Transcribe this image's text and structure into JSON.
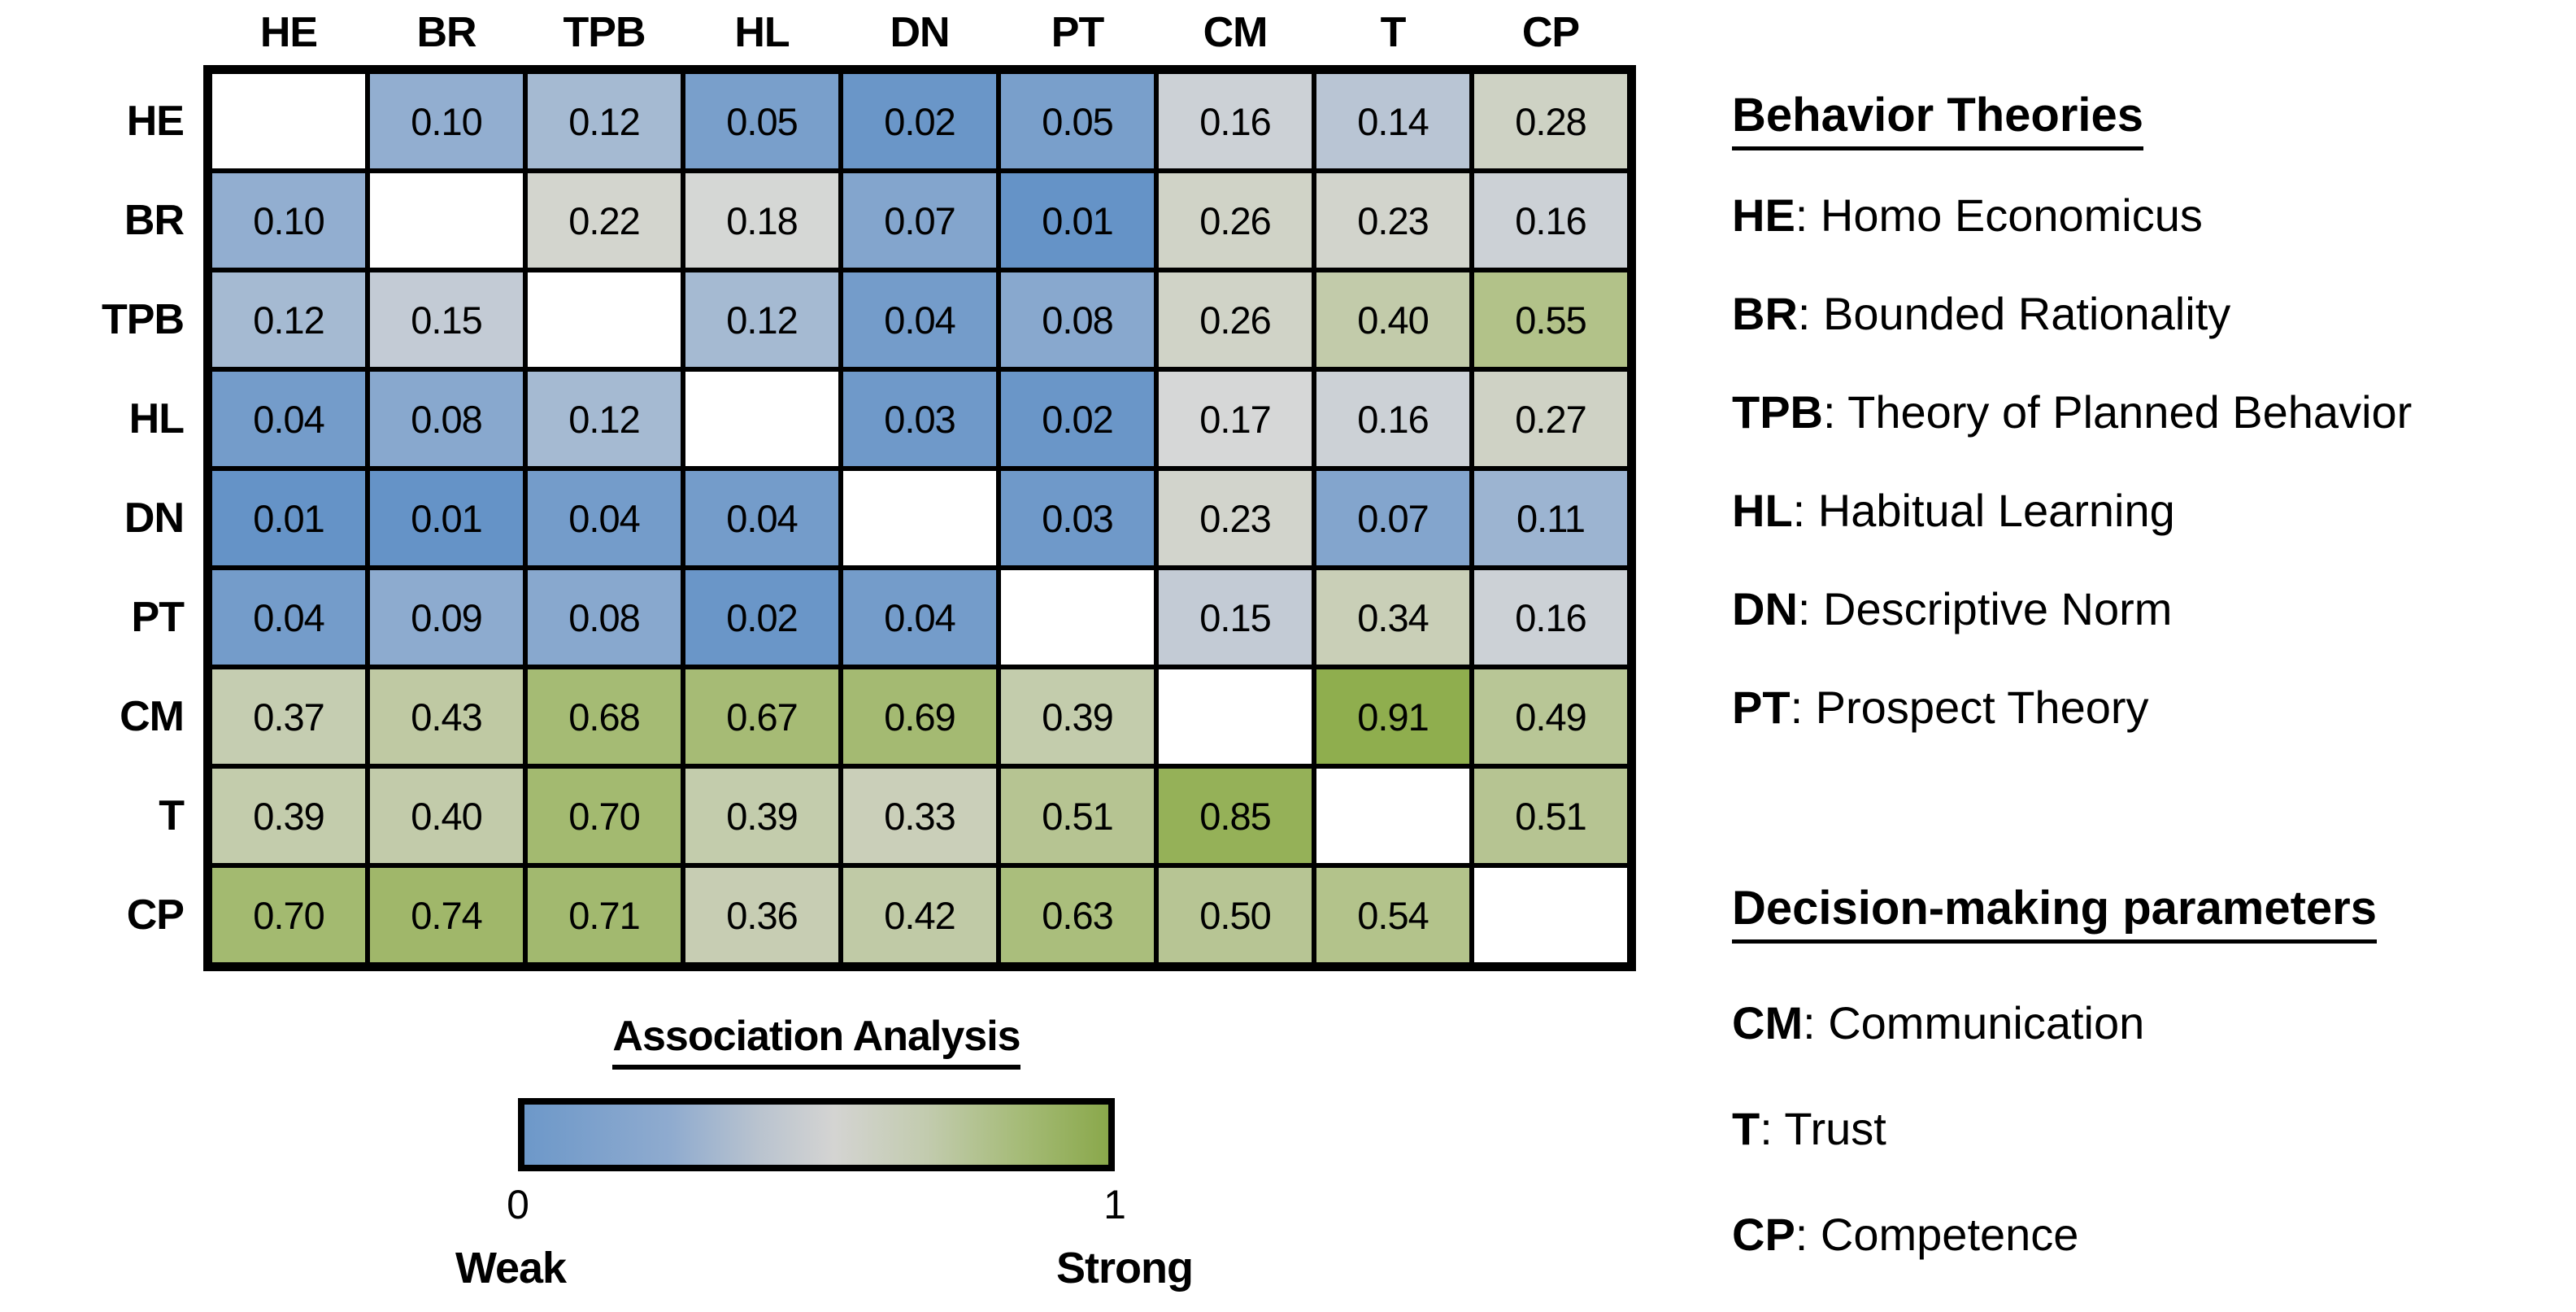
{
  "chart_data": {
    "type": "heatmap",
    "title": "Association Analysis",
    "row_labels": [
      "HE",
      "BR",
      "TPB",
      "HL",
      "DN",
      "PT",
      "CM",
      "T",
      "CP"
    ],
    "col_labels": [
      "HE",
      "BR",
      "TPB",
      "HL",
      "DN",
      "PT",
      "CM",
      "T",
      "CP"
    ],
    "matrix": [
      [
        null,
        0.1,
        0.12,
        0.05,
        0.02,
        0.05,
        0.16,
        0.14,
        0.28
      ],
      [
        0.1,
        null,
        0.22,
        0.18,
        0.07,
        0.01,
        0.26,
        0.23,
        0.16
      ],
      [
        0.12,
        0.15,
        null,
        0.12,
        0.04,
        0.08,
        0.26,
        0.4,
        0.55
      ],
      [
        0.04,
        0.08,
        0.12,
        null,
        0.03,
        0.02,
        0.17,
        0.16,
        0.27
      ],
      [
        0.01,
        0.01,
        0.04,
        0.04,
        null,
        0.03,
        0.23,
        0.07,
        0.11
      ],
      [
        0.04,
        0.09,
        0.08,
        0.02,
        0.04,
        null,
        0.15,
        0.34,
        0.16
      ],
      [
        0.37,
        0.43,
        0.68,
        0.67,
        0.69,
        0.39,
        null,
        0.91,
        0.49
      ],
      [
        0.39,
        0.4,
        0.7,
        0.39,
        0.33,
        0.51,
        0.85,
        null,
        0.51
      ],
      [
        0.7,
        0.74,
        0.71,
        0.36,
        0.42,
        0.63,
        0.5,
        0.54,
        null
      ]
    ],
    "value_range": [
      0,
      1
    ],
    "diagonal": "blank",
    "grid": true,
    "colormap_stops": [
      [
        0.0,
        "#6090c6"
      ],
      [
        0.1,
        "#92aed0"
      ],
      [
        0.17,
        "#d6d7d7"
      ],
      [
        0.3,
        "#cdd1c0"
      ],
      [
        0.55,
        "#b2c289"
      ],
      [
        0.91,
        "#8fae4e"
      ],
      [
        1.0,
        "#89a944"
      ]
    ],
    "legend": {
      "title": "Association Analysis",
      "min_tick": "0",
      "max_tick": "1",
      "min_label": "Weak",
      "max_label": "Strong",
      "gradient_left_color": "#6d98c9",
      "gradient_right_color": "#8aa84b"
    }
  },
  "sidebar": {
    "behavior_theories": {
      "title": "Behavior Theories",
      "items": [
        {
          "abbr": "HE",
          "name": "Homo Economicus"
        },
        {
          "abbr": "BR",
          "name": "Bounded Rationality"
        },
        {
          "abbr": "TPB",
          "name": "Theory of Planned Behavior"
        },
        {
          "abbr": "HL",
          "name": "Habitual Learning"
        },
        {
          "abbr": "DN",
          "name": "Descriptive Norm"
        },
        {
          "abbr": "PT",
          "name": "Prospect Theory"
        }
      ]
    },
    "decision_parameters": {
      "title": "Decision-making parameters",
      "items": [
        {
          "abbr": "CM",
          "name": "Communication"
        },
        {
          "abbr": "T",
          "name": "Trust"
        },
        {
          "abbr": "CP",
          "name": "Competence"
        }
      ]
    }
  }
}
